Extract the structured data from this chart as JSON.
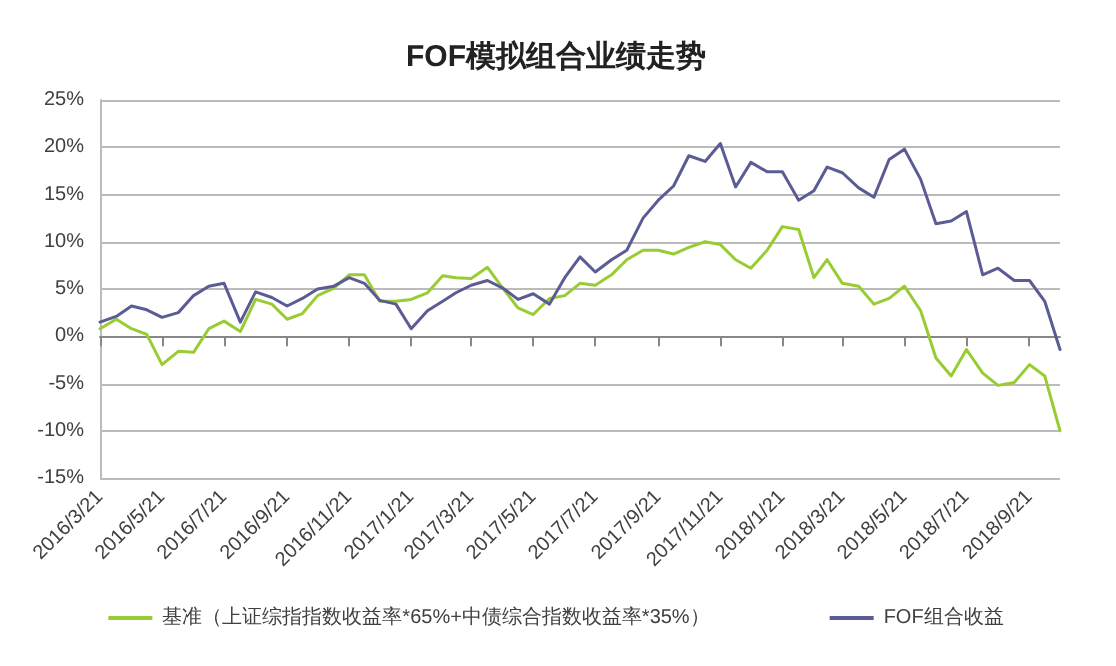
{
  "chart_data": {
    "type": "line",
    "title": "FOF模拟组合业绩走势",
    "x": [
      "2016-03-21",
      "2016-04-06",
      "2016-04-21",
      "2016-05-06",
      "2016-05-21",
      "2016-06-06",
      "2016-06-21",
      "2016-07-06",
      "2016-07-21",
      "2016-08-06",
      "2016-08-21",
      "2016-09-06",
      "2016-09-21",
      "2016-10-06",
      "2016-10-21",
      "2016-11-06",
      "2016-11-21",
      "2016-12-06",
      "2016-12-21",
      "2017-01-06",
      "2017-01-21",
      "2017-02-06",
      "2017-02-21",
      "2017-03-06",
      "2017-03-21",
      "2017-04-06",
      "2017-04-21",
      "2017-05-06",
      "2017-05-21",
      "2017-06-06",
      "2017-06-21",
      "2017-07-06",
      "2017-07-21",
      "2017-08-06",
      "2017-08-21",
      "2017-09-06",
      "2017-09-21",
      "2017-10-06",
      "2017-10-21",
      "2017-11-06",
      "2017-11-21",
      "2017-12-06",
      "2017-12-21",
      "2018-01-06",
      "2018-01-21",
      "2018-02-06",
      "2018-02-21",
      "2018-03-06",
      "2018-03-21",
      "2018-04-06",
      "2018-04-21",
      "2018-05-06",
      "2018-05-21",
      "2018-06-06",
      "2018-06-21",
      "2018-07-06",
      "2018-07-21",
      "2018-08-06",
      "2018-08-21",
      "2018-09-06",
      "2018-09-21",
      "2018-10-06",
      "2018-10-21"
    ],
    "series": [
      {
        "name": "基准（上证综指指数收益率*65%+中债综合指数收益率*35%）",
        "color": "#99cc33",
        "values": [
          0.8,
          1.8,
          0.8,
          0.2,
          -3.0,
          -1.6,
          -1.7,
          0.8,
          1.6,
          0.5,
          3.9,
          3.4,
          1.8,
          2.4,
          4.3,
          5.1,
          6.5,
          6.5,
          3.7,
          3.7,
          3.9,
          4.6,
          6.4,
          6.2,
          6.1,
          7.3,
          5.1,
          3.0,
          2.3,
          4.0,
          4.3,
          5.6,
          5.4,
          6.5,
          8.1,
          9.1,
          9.1,
          8.7,
          9.4,
          10.0,
          9.7,
          8.1,
          7.2,
          9.1,
          11.6,
          11.3,
          6.2,
          8.1,
          5.6,
          5.3,
          3.4,
          4.0,
          5.3,
          2.7,
          -2.3,
          -4.2,
          -1.4,
          -3.9,
          -5.2,
          -4.9,
          -3.0,
          -4.2,
          -10.0
        ]
      },
      {
        "name": "FOF组合收益",
        "color": "#5c5c94",
        "values": [
          1.5,
          2.1,
          3.2,
          2.8,
          2.0,
          2.5,
          4.3,
          5.3,
          5.6,
          1.5,
          4.7,
          4.1,
          3.2,
          4.0,
          5.0,
          5.3,
          6.2,
          5.6,
          3.8,
          3.4,
          0.8,
          2.7,
          3.7,
          4.6,
          5.4,
          5.9,
          5.1,
          3.9,
          4.5,
          3.4,
          6.2,
          8.4,
          6.8,
          8.1,
          9.1,
          12.5,
          14.4,
          15.9,
          19.1,
          18.5,
          20.4,
          15.8,
          18.4,
          17.4,
          17.4,
          14.4,
          15.4,
          17.9,
          17.3,
          15.7,
          14.7,
          18.7,
          19.8,
          16.6,
          11.9,
          12.2,
          13.2,
          6.5,
          7.2,
          5.9,
          5.9,
          3.7,
          -1.4
        ]
      }
    ],
    "xlim": [
      "2016-03-21",
      "2018-10-21"
    ],
    "xticks": [
      {
        "value": "2016-03-21",
        "label": "2016/3/21"
      },
      {
        "value": "2016-05-21",
        "label": "2016/5/21"
      },
      {
        "value": "2016-07-21",
        "label": "2016/7/21"
      },
      {
        "value": "2016-09-21",
        "label": "2016/9/21"
      },
      {
        "value": "2016-11-21",
        "label": "2016/11/21"
      },
      {
        "value": "2017-01-21",
        "label": "2017/1/21"
      },
      {
        "value": "2017-03-21",
        "label": "2017/3/21"
      },
      {
        "value": "2017-05-21",
        "label": "2017/5/21"
      },
      {
        "value": "2017-07-21",
        "label": "2017/7/21"
      },
      {
        "value": "2017-09-21",
        "label": "2017/9/21"
      },
      {
        "value": "2017-11-21",
        "label": "2017/11/21"
      },
      {
        "value": "2018-01-21",
        "label": "2018/1/21"
      },
      {
        "value": "2018-03-21",
        "label": "2018/3/21"
      },
      {
        "value": "2018-05-21",
        "label": "2018/5/21"
      },
      {
        "value": "2018-07-21",
        "label": "2018/7/21"
      },
      {
        "value": "2018-09-21",
        "label": "2018/9/21"
      }
    ],
    "ylim": [
      -15,
      25
    ],
    "yticks": [
      {
        "value": -15,
        "label": "-15%"
      },
      {
        "value": -10,
        "label": "-10%"
      },
      {
        "value": -5,
        "label": "-5%"
      },
      {
        "value": 0,
        "label": "0%"
      },
      {
        "value": 5,
        "label": "5%"
      },
      {
        "value": 10,
        "label": "10%"
      },
      {
        "value": 15,
        "label": "15%"
      },
      {
        "value": 20,
        "label": "20%"
      },
      {
        "value": 25,
        "label": "25%"
      }
    ],
    "grid": "y",
    "legend": "bottom",
    "marker": "none",
    "line_style": "solid"
  }
}
